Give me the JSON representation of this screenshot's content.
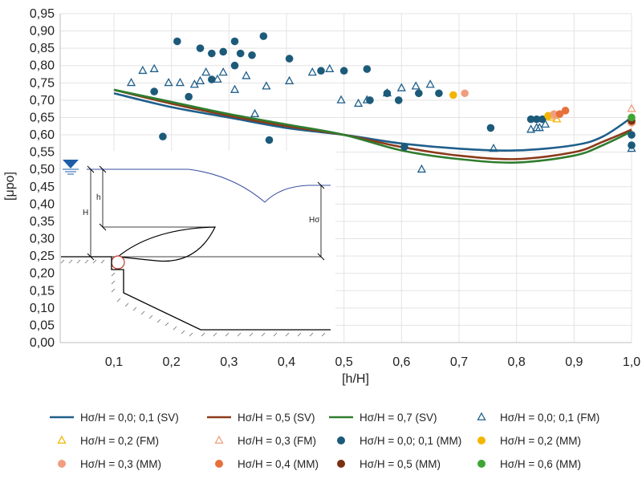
{
  "chart_data": {
    "type": "scatter",
    "xlabel": "[h/H]",
    "ylabel": "[μpo]",
    "xlim": [
      0,
      1.0
    ],
    "ylim": [
      0,
      0.95
    ],
    "x_ticks": [
      "0,1",
      "0,2",
      "0,3",
      "0,4",
      "0,5",
      "0,6",
      "0,7",
      "0,8",
      "0,9",
      "1,0"
    ],
    "y_ticks": [
      "0,00",
      "0,05",
      "0,10",
      "0,15",
      "0,20",
      "0,25",
      "0,30",
      "0,35",
      "0,40",
      "0,45",
      "0,50",
      "0,55",
      "0,60",
      "0,65",
      "0,70",
      "0,75",
      "0,80",
      "0,85",
      "0,90",
      "0,95"
    ],
    "grid": true,
    "legend_position": "bottom",
    "series": [
      {
        "name": "Hσ/H = 0,0; 0,1 (SV)",
        "kind": "line",
        "color": "#1f5f8b",
        "points": [
          [
            0.1,
            0.72
          ],
          [
            0.2,
            0.68
          ],
          [
            0.3,
            0.65
          ],
          [
            0.4,
            0.62
          ],
          [
            0.5,
            0.6
          ],
          [
            0.6,
            0.575
          ],
          [
            0.7,
            0.56
          ],
          [
            0.8,
            0.555
          ],
          [
            0.9,
            0.57
          ],
          [
            0.95,
            0.595
          ],
          [
            1.0,
            0.65
          ]
        ]
      },
      {
        "name": "Hσ/H = 0,5 (SV)",
        "kind": "line",
        "color": "#8b3a1a",
        "points": [
          [
            0.1,
            0.73
          ],
          [
            0.2,
            0.69
          ],
          [
            0.3,
            0.655
          ],
          [
            0.4,
            0.625
          ],
          [
            0.5,
            0.6
          ],
          [
            0.6,
            0.565
          ],
          [
            0.7,
            0.54
          ],
          [
            0.8,
            0.53
          ],
          [
            0.9,
            0.55
          ],
          [
            0.95,
            0.58
          ],
          [
            1.0,
            0.615
          ]
        ]
      },
      {
        "name": "Hσ/H = 0,7 (SV)",
        "kind": "line",
        "color": "#2e7d2e",
        "points": [
          [
            0.1,
            0.73
          ],
          [
            0.2,
            0.695
          ],
          [
            0.3,
            0.66
          ],
          [
            0.4,
            0.63
          ],
          [
            0.5,
            0.6
          ],
          [
            0.6,
            0.555
          ],
          [
            0.7,
            0.53
          ],
          [
            0.8,
            0.52
          ],
          [
            0.9,
            0.54
          ],
          [
            0.95,
            0.57
          ],
          [
            1.0,
            0.61
          ]
        ]
      },
      {
        "name": "Hσ/H = 0,0; 0,1 (FM)",
        "kind": "triangle",
        "color": "#1f5f8b",
        "points": [
          [
            0.13,
            0.75
          ],
          [
            0.15,
            0.785
          ],
          [
            0.17,
            0.79
          ],
          [
            0.195,
            0.75
          ],
          [
            0.215,
            0.75
          ],
          [
            0.24,
            0.745
          ],
          [
            0.25,
            0.755
          ],
          [
            0.26,
            0.78
          ],
          [
            0.28,
            0.76
          ],
          [
            0.29,
            0.78
          ],
          [
            0.31,
            0.73
          ],
          [
            0.33,
            0.77
          ],
          [
            0.345,
            0.66
          ],
          [
            0.365,
            0.74
          ],
          [
            0.405,
            0.755
          ],
          [
            0.445,
            0.78
          ],
          [
            0.475,
            0.79
          ],
          [
            0.495,
            0.7
          ],
          [
            0.525,
            0.69
          ],
          [
            0.54,
            0.7
          ],
          [
            0.575,
            0.72
          ],
          [
            0.6,
            0.735
          ],
          [
            0.625,
            0.74
          ],
          [
            0.635,
            0.5
          ],
          [
            0.65,
            0.745
          ],
          [
            0.76,
            0.56
          ],
          [
            0.825,
            0.615
          ],
          [
            0.835,
            0.62
          ],
          [
            0.84,
            0.62
          ],
          [
            0.85,
            0.63
          ],
          [
            1.0,
            0.56
          ]
        ]
      },
      {
        "name": "Hσ/H = 0,2 (FM)",
        "kind": "triangle",
        "color": "#f2b600",
        "points": [
          [
            0.86,
            0.65
          ],
          [
            0.87,
            0.645
          ],
          [
            1.0,
            0.64
          ]
        ]
      },
      {
        "name": "Hσ/H = 0,3 (FM)",
        "kind": "triangle",
        "color": "#ef9f80",
        "points": [
          [
            0.865,
            0.655
          ],
          [
            1.0,
            0.675
          ]
        ]
      },
      {
        "name": "Hσ/H = 0,0; 0,1 (MM)",
        "kind": "circle",
        "color": "#1c5a7a",
        "points": [
          [
            0.17,
            0.725
          ],
          [
            0.185,
            0.595
          ],
          [
            0.21,
            0.87
          ],
          [
            0.23,
            0.71
          ],
          [
            0.25,
            0.85
          ],
          [
            0.27,
            0.835
          ],
          [
            0.27,
            0.76
          ],
          [
            0.29,
            0.84
          ],
          [
            0.31,
            0.87
          ],
          [
            0.31,
            0.8
          ],
          [
            0.32,
            0.835
          ],
          [
            0.34,
            0.83
          ],
          [
            0.36,
            0.885
          ],
          [
            0.37,
            0.585
          ],
          [
            0.405,
            0.82
          ],
          [
            0.46,
            0.785
          ],
          [
            0.5,
            0.785
          ],
          [
            0.54,
            0.79
          ],
          [
            0.545,
            0.7
          ],
          [
            0.575,
            0.72
          ],
          [
            0.595,
            0.7
          ],
          [
            0.605,
            0.565
          ],
          [
            0.63,
            0.72
          ],
          [
            0.665,
            0.72
          ],
          [
            0.755,
            0.62
          ],
          [
            0.825,
            0.645
          ],
          [
            0.835,
            0.645
          ],
          [
            0.845,
            0.645
          ],
          [
            1.0,
            0.6
          ],
          [
            1.0,
            0.57
          ]
        ]
      },
      {
        "name": "Hσ/H = 0,2 (MM)",
        "kind": "circle",
        "color": "#f2b600",
        "points": [
          [
            0.69,
            0.715
          ],
          [
            0.855,
            0.655
          ]
        ]
      },
      {
        "name": "Hσ/H = 0,3 (MM)",
        "kind": "circle",
        "color": "#ef9f80",
        "points": [
          [
            0.71,
            0.72
          ],
          [
            0.865,
            0.66
          ],
          [
            1.0,
            0.635
          ]
        ]
      },
      {
        "name": "Hσ/H = 0,4 (MM)",
        "kind": "circle",
        "color": "#e8703a",
        "points": [
          [
            0.875,
            0.66
          ],
          [
            0.885,
            0.67
          ]
        ]
      },
      {
        "name": "Hσ/H = 0,5 (MM)",
        "kind": "circle",
        "color": "#7a2e12",
        "points": [
          [
            1.0,
            0.64
          ]
        ]
      },
      {
        "name": "Hσ/H = 0,6 (MM)",
        "kind": "circle",
        "color": "#3fa535",
        "points": [
          [
            1.0,
            0.65
          ]
        ]
      }
    ]
  },
  "inset": {
    "label_H": "H",
    "label_h": "h",
    "label_Hs": "Hσ"
  }
}
